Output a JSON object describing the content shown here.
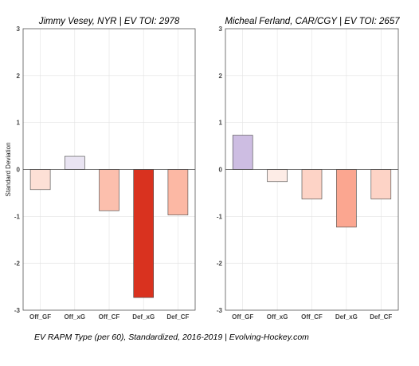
{
  "chart_data": [
    {
      "type": "bar",
      "title": "Jimmy Vesey, NYR  |  EV TOI: 2978",
      "ylabel": "Standard Deviation",
      "ylim": [
        -3,
        3
      ],
      "yticks": [
        -3,
        -2,
        -1,
        0,
        1,
        2,
        3
      ],
      "categories": [
        "Off_GF",
        "Off_xG",
        "Off_CF",
        "Def_xG",
        "Def_CF"
      ],
      "values": [
        -0.43,
        0.28,
        -0.88,
        -2.73,
        -0.97
      ],
      "colors": [
        "#fde0d6",
        "#e9e4f2",
        "#fcbfad",
        "#d9321f",
        "#fcb8a4"
      ],
      "grid": true
    },
    {
      "type": "bar",
      "title": "Micheal Ferland, CAR/CGY  |  EV TOI: 2657",
      "ylabel": "",
      "ylim": [
        -3,
        3
      ],
      "yticks": [
        -3,
        -2,
        -1,
        0,
        1,
        2,
        3
      ],
      "categories": [
        "Off_GF",
        "Off_xG",
        "Off_CF",
        "Def_xG",
        "Def_CF"
      ],
      "values": [
        0.73,
        -0.26,
        -0.63,
        -1.23,
        -0.63
      ],
      "colors": [
        "#cdbde2",
        "#fdece6",
        "#fdd3c6",
        "#fba690",
        "#fdd3c6"
      ],
      "grid": true
    }
  ],
  "caption": "EV RAPM Type (per 60), Standardized, 2016-2019    |    Evolving-Hockey.com"
}
